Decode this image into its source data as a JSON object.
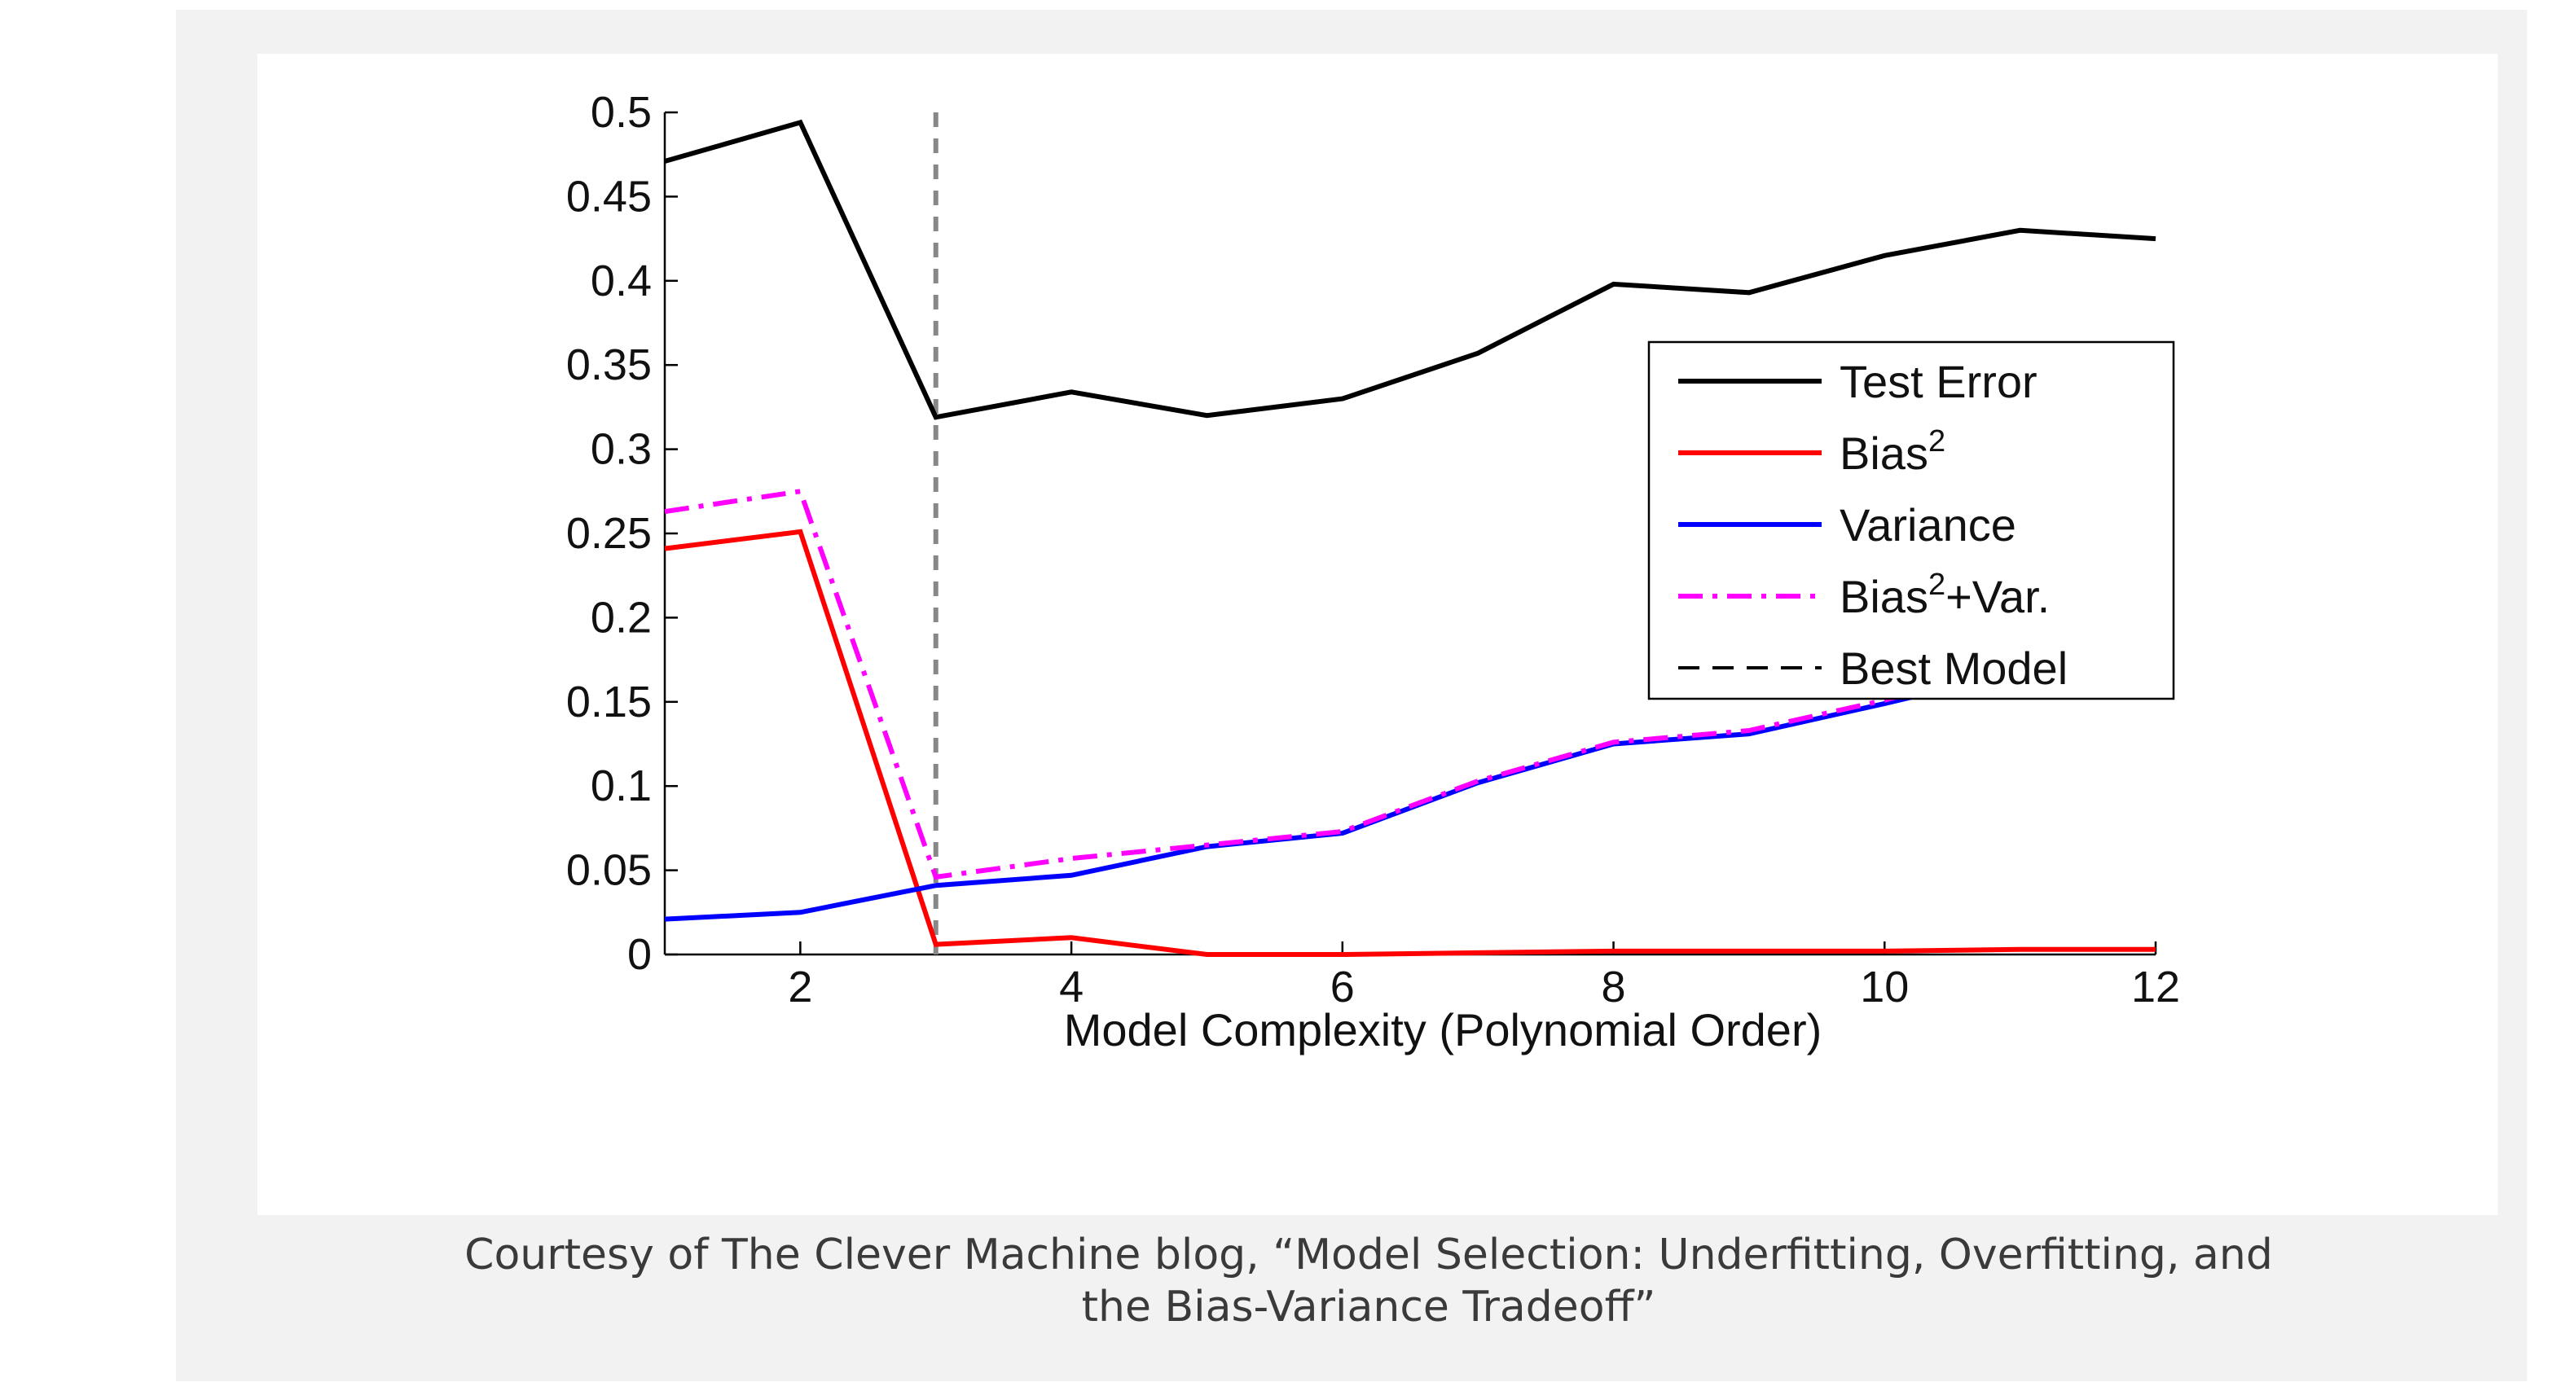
{
  "caption": {
    "line1": "Courtesy of The Clever Machine blog, “Model Selection: Underfitting, Overfitting, and",
    "line2": "the Bias-Variance Tradeoff”"
  },
  "chart_data": {
    "type": "line",
    "xlabel": "Model Complexity (Polynomial Order)",
    "ylabel": "",
    "xlim": [
      1,
      12
    ],
    "ylim": [
      0,
      0.5
    ],
    "x_ticks": [
      2,
      4,
      6,
      8,
      10,
      12
    ],
    "y_ticks": [
      0,
      0.05,
      0.1,
      0.15,
      0.2,
      0.25,
      0.3,
      0.35,
      0.4,
      0.45,
      0.5
    ],
    "x_tick_labels": [
      "2",
      "4",
      "6",
      "8",
      "10",
      "12"
    ],
    "y_tick_labels": [
      "0",
      "0.05",
      "0.1",
      "0.15",
      "0.2",
      "0.25",
      "0.3",
      "0.35",
      "0.4",
      "0.45",
      "0.5"
    ],
    "x": [
      1,
      2,
      3,
      4,
      5,
      6,
      7,
      8,
      9,
      10,
      11,
      12
    ],
    "series": [
      {
        "key": "test",
        "legend_base": "Test Error",
        "legend_sup": "",
        "legend_suffix": "",
        "color": "#000000",
        "dash": "solid",
        "values": [
          0.471,
          0.494,
          0.319,
          0.334,
          0.32,
          0.33,
          0.357,
          0.398,
          0.393,
          0.415,
          0.43,
          0.425
        ]
      },
      {
        "key": "bias2",
        "legend_base": "Bias",
        "legend_sup": "2",
        "legend_suffix": "",
        "color": "#ff0000",
        "dash": "solid",
        "values": [
          0.241,
          0.251,
          0.006,
          0.01,
          0.0,
          0.0,
          0.001,
          0.002,
          0.002,
          0.002,
          0.003,
          0.003
        ]
      },
      {
        "key": "variance",
        "legend_base": "Variance",
        "legend_sup": "",
        "legend_suffix": "",
        "color": "#0000ff",
        "dash": "solid",
        "values": [
          0.021,
          0.025,
          0.041,
          0.047,
          0.064,
          0.072,
          0.102,
          0.125,
          0.131,
          0.149,
          0.168,
          0.18
        ]
      },
      {
        "key": "bias2var",
        "legend_base": "Bias",
        "legend_sup": "2",
        "legend_suffix": "+Var.",
        "color": "#ff00ff",
        "dash": "dashdot",
        "values": [
          0.263,
          0.275,
          0.046,
          0.057,
          0.065,
          0.073,
          0.103,
          0.126,
          0.133,
          0.151,
          0.171,
          0.181
        ]
      }
    ],
    "best_model": {
      "legend": "Best Model",
      "x": 3,
      "color": "#888888"
    },
    "legend_line_color_best": "#000000",
    "legend_position": "right",
    "grid": false
  }
}
